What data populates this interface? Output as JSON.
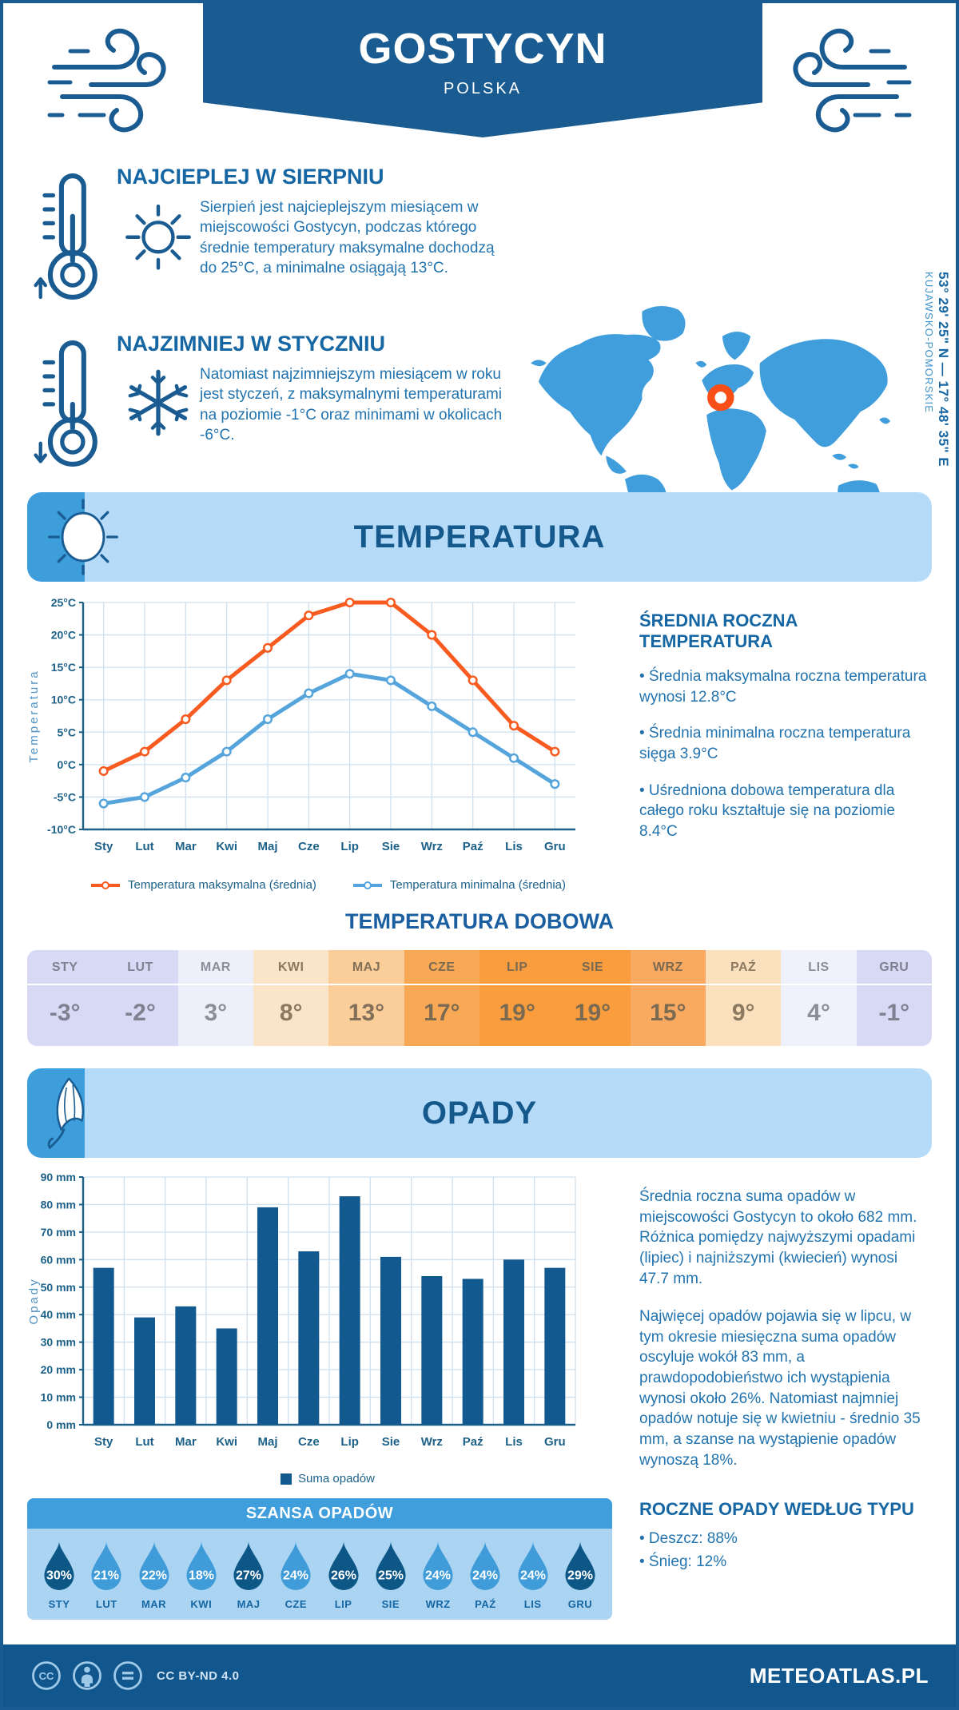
{
  "header": {
    "title": "GOSTYCYN",
    "subtitle": "POLSKA"
  },
  "intro": {
    "warm": {
      "heading": "NAJCIEPLEJ W SIERPNIU",
      "text": "Sierpień jest najcieplejszym miesiącem w miejscowości Gostycyn, podczas którego średnie temperatury maksymalne dochodzą do 25°C, a minimalne osiągają 13°C."
    },
    "cold": {
      "heading": "NAJZIMNIEJ W STYCZNIU",
      "text": "Natomiast najzimniejszym miesiącem w roku jest styczeń, z maksymalnymi temperaturami na poziomie -1°C oraz minimami w okolicach -6°C."
    }
  },
  "map": {
    "coordinates": "53° 29' 25\" N — 17° 48' 35\" E",
    "region": "KUJAWSKO-POMORSKIE",
    "land_color": "#3f9edb",
    "marker_color": "#f94e17"
  },
  "temperature": {
    "banner_title": "TEMPERATURA",
    "annual_heading": "ŚREDNIA ROCZNA TEMPERATURA",
    "annual_bullets": [
      "• Średnia maksymalna roczna temperatura wynosi 12.8°C",
      "• Średnia minimalna roczna temperatura sięga 3.9°C",
      "• Uśredniona dobowa temperatura dla całego roku kształtuje się na poziomie 8.4°C"
    ],
    "daily_title": "TEMPERATURA DOBOWA"
  },
  "daily_table": {
    "months": [
      "STY",
      "LUT",
      "MAR",
      "KWI",
      "MAJ",
      "CZE",
      "LIP",
      "SIE",
      "WRZ",
      "PAŹ",
      "LIS",
      "GRU"
    ],
    "values": [
      "-3°",
      "-2°",
      "3°",
      "8°",
      "13°",
      "17°",
      "19°",
      "19°",
      "15°",
      "9°",
      "4°",
      "-1°"
    ],
    "cell_colors": [
      "#d8d9f4",
      "#d8d9f4",
      "#edeffb",
      "#fbe5c8",
      "#fbcd98",
      "#f9a955",
      "#f99d3f",
      "#f99d3f",
      "#f9aa60",
      "#fbe0bd",
      "#eff1fc",
      "#d8d9f4"
    ],
    "text_colors": [
      "#7f8191",
      "#7f8191",
      "#8c8d99",
      "#8b7a61",
      "#82705a",
      "#7a6a52",
      "#7a6a52",
      "#7a6a52",
      "#7a6a52",
      "#8b7a61",
      "#8c8d99",
      "#7f8191"
    ]
  },
  "precipitation": {
    "banner_title": "OPADY",
    "paragraphs": [
      "Średnia roczna suma opadów w miejscowości Gostycyn to około 682 mm. Różnica pomiędzy najwyższymi opadami (lipiec) i najniższymi (kwiecień) wynosi 47.7 mm.",
      "Najwięcej opadów pojawia się w lipcu, w tym okresie miesięczna suma opadów oscyluje wokół 83 mm, a prawdopodobieństwo ich wystąpienia wynosi około 26%. Natomiast najmniej opadów notuje się w kwietniu - średnio 35 mm, a szanse na wystąpienie opadów wynoszą 18%."
    ],
    "type_heading": "ROCZNE OPADY WEDŁUG TYPU",
    "type_bullets": [
      "• Deszcz: 88%",
      "• Śnieg: 12%"
    ]
  },
  "chance": {
    "title": "SZANSA OPADÓW",
    "months": [
      "STY",
      "LUT",
      "MAR",
      "KWI",
      "MAJ",
      "CZE",
      "LIP",
      "SIE",
      "WRZ",
      "PAŹ",
      "LIS",
      "GRU"
    ],
    "values": [
      "30%",
      "21%",
      "22%",
      "18%",
      "27%",
      "24%",
      "26%",
      "25%",
      "24%",
      "24%",
      "24%",
      "29%"
    ],
    "dark": [
      true,
      false,
      false,
      false,
      true,
      false,
      true,
      true,
      false,
      false,
      false,
      true
    ],
    "dark_color": "#0d5787",
    "light_color": "#3f9cd8"
  },
  "footer": {
    "license": "CC BY-ND 4.0",
    "site": "METEOATLAS.PL"
  },
  "chart_data": [
    {
      "type": "line",
      "x": [
        "Sty",
        "Lut",
        "Mar",
        "Kwi",
        "Maj",
        "Cze",
        "Lip",
        "Sie",
        "Wrz",
        "Paź",
        "Lis",
        "Gru"
      ],
      "ylabel": "Temperatura",
      "ylim": [
        -10,
        25
      ],
      "ytick_step": 5,
      "ytick_suffix": "°C",
      "grid": true,
      "legend_position": "bottom",
      "series": [
        {
          "name": "Temperatura maksymalna (średnia)",
          "color": "#f85b20",
          "values": [
            -1,
            2,
            7,
            13,
            18,
            23,
            25,
            25,
            20,
            13,
            6,
            2
          ]
        },
        {
          "name": "Temperatura minimalna (średnia)",
          "color": "#55a5dc",
          "values": [
            -6,
            -5,
            -2,
            2,
            7,
            11,
            14,
            13,
            9,
            5,
            1,
            -3
          ]
        }
      ]
    },
    {
      "type": "bar",
      "x": [
        "Sty",
        "Lut",
        "Mar",
        "Kwi",
        "Maj",
        "Cze",
        "Lip",
        "Sie",
        "Wrz",
        "Paź",
        "Lis",
        "Gru"
      ],
      "ylabel": "Opady",
      "ylim": [
        0,
        90
      ],
      "ytick_step": 10,
      "ytick_suffix": " mm",
      "grid": true,
      "legend_position": "bottom",
      "series": [
        {
          "name": "Suma opadów",
          "color": "#12598f",
          "values": [
            57,
            39,
            43,
            35,
            79,
            63,
            83,
            61,
            54,
            53,
            60,
            57
          ]
        }
      ]
    }
  ]
}
